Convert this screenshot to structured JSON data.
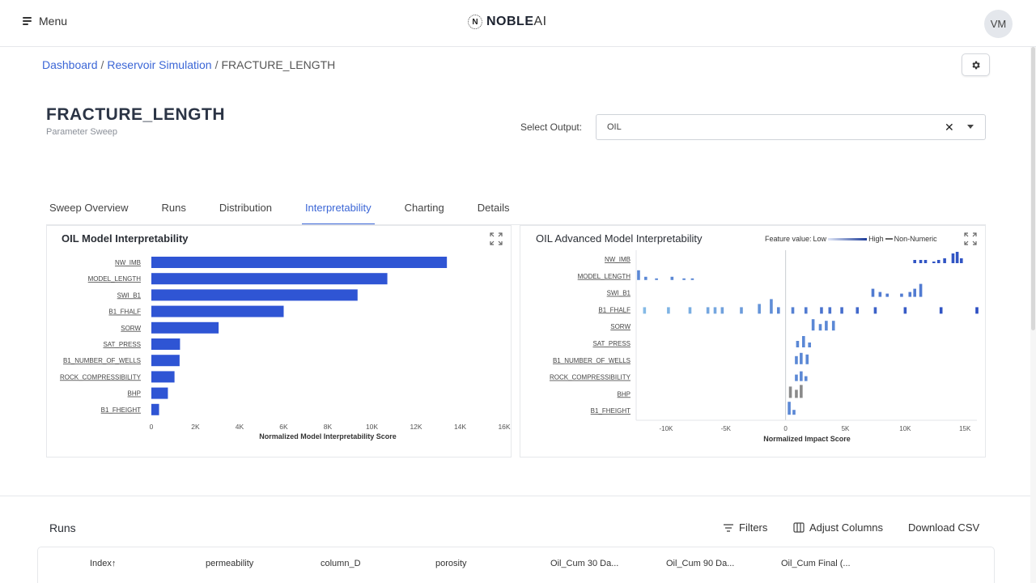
{
  "header": {
    "menu_label": "Menu",
    "logo_mark": "N",
    "logo_main": "NOBLE",
    "logo_ai": "AI",
    "avatar_initials": "VM"
  },
  "breadcrumb": {
    "items": [
      "Dashboard",
      "Reservoir Simulation"
    ],
    "separator": "/",
    "current": "FRACTURE_LENGTH"
  },
  "page": {
    "title": "FRACTURE_LENGTH",
    "subtitle": "Parameter Sweep"
  },
  "output_select": {
    "label": "Select Output:",
    "value": "OIL",
    "clear": "✕"
  },
  "tabs": [
    {
      "label": "Sweep Overview",
      "active": false
    },
    {
      "label": "Runs",
      "active": false
    },
    {
      "label": "Distribution",
      "active": false
    },
    {
      "label": "Interpretability",
      "active": true
    },
    {
      "label": "Charting",
      "active": false
    },
    {
      "label": "Details",
      "active": false
    }
  ],
  "colors": {
    "accent": "#3b66d6",
    "bar": "#2f55d4",
    "beeswarm_low": "#8fc7ea",
    "beeswarm_high": "#2748c0",
    "non_numeric": "#8a8a8a"
  },
  "chart_data": [
    {
      "type": "bar",
      "orientation": "horizontal",
      "title": "OIL Model Interpretability",
      "xlabel": "Normalized Model Interpretability Score",
      "categories": [
        "NW_IMB",
        "MODEL_LENGTH",
        "SWI_B1",
        "B1_FHALF",
        "SORW",
        "SAT_PRESS",
        "B1_NUMBER_OF_WELLS",
        "ROCK_COMPRESSIBILITY",
        "BHP",
        "B1_FHEIGHT"
      ],
      "values": [
        13400,
        10700,
        9350,
        6000,
        3050,
        1300,
        1280,
        1050,
        750,
        350
      ],
      "xlim": [
        0,
        16000
      ],
      "xticks": [
        0,
        2000,
        4000,
        6000,
        8000,
        10000,
        12000,
        14000,
        16000
      ],
      "xtick_labels": [
        "0",
        "2K",
        "4K",
        "6K",
        "8K",
        "10K",
        "12K",
        "14K",
        "16K"
      ]
    },
    {
      "type": "scatter",
      "title": "OIL Advanced Model Interpretability",
      "xlabel": "Normalized Impact Score",
      "legend": {
        "label": "Feature value:",
        "low": "Low",
        "high": "High",
        "non_numeric": "Non-Numeric",
        "placement": "top-right"
      },
      "categories": [
        "NW_IMB",
        "MODEL_LENGTH",
        "SWI_B1",
        "B1_FHALF",
        "SORW",
        "SAT_PRESS",
        "B1_NUMBER_OF_WELLS",
        "ROCK_COMPRESSIBILITY",
        "BHP",
        "B1_FHEIGHT"
      ],
      "xlim": [
        -12500,
        16000
      ],
      "xticks": [
        -10000,
        -5000,
        0,
        5000,
        10000,
        15000
      ],
      "xtick_labels": [
        "-10K",
        "-5K",
        "0",
        "5K",
        "10K",
        "15K"
      ],
      "series": [
        {
          "points": [
            [
              10800,
              2,
              0.9
            ],
            [
              11300,
              2,
              0.9
            ],
            [
              11700,
              2,
              0.9
            ],
            [
              12400,
              1,
              0.9
            ],
            [
              12800,
              2,
              0.9
            ],
            [
              13300,
              3,
              0.9
            ],
            [
              14000,
              6,
              0.9
            ],
            [
              14350,
              7,
              0.9
            ],
            [
              14700,
              3,
              0.9
            ]
          ]
        },
        {
          "points": [
            [
              -12300,
              6,
              0.5
            ],
            [
              -11700,
              2,
              0.5
            ],
            [
              -10800,
              1,
              0.5
            ],
            [
              -9500,
              2,
              0.5
            ],
            [
              -8500,
              1,
              0.5
            ],
            [
              -7800,
              1,
              0.5
            ]
          ]
        },
        {
          "points": [
            [
              7300,
              5,
              0.6
            ],
            [
              7900,
              3,
              0.6
            ],
            [
              8500,
              2,
              0.6
            ],
            [
              9700,
              2,
              0.6
            ],
            [
              10400,
              3,
              0.6
            ],
            [
              10800,
              5,
              0.6
            ],
            [
              11300,
              8,
              0.6
            ]
          ]
        },
        {
          "points": [
            [
              -11800,
              4,
              0.1
            ],
            [
              -9800,
              4,
              0.15
            ],
            [
              -8000,
              4,
              0.2
            ],
            [
              -6500,
              4,
              0.25
            ],
            [
              -5900,
              4,
              0.25
            ],
            [
              -5300,
              4,
              0.3
            ],
            [
              -3700,
              4,
              0.35
            ],
            [
              -2200,
              6,
              0.4
            ],
            [
              -1200,
              9,
              0.45
            ],
            [
              -600,
              4,
              0.5
            ],
            [
              600,
              4,
              0.55
            ],
            [
              1700,
              4,
              0.6
            ],
            [
              3000,
              4,
              0.65
            ],
            [
              3700,
              4,
              0.65
            ],
            [
              4700,
              4,
              0.7
            ],
            [
              6000,
              4,
              0.75
            ],
            [
              7500,
              4,
              0.8
            ],
            [
              10000,
              4,
              0.85
            ],
            [
              13000,
              4,
              0.9
            ],
            [
              16000,
              4,
              0.95
            ]
          ]
        },
        {
          "points": [
            [
              2300,
              7,
              0.5
            ],
            [
              2900,
              4,
              0.5
            ],
            [
              3400,
              6,
              0.5
            ],
            [
              4000,
              6,
              0.5
            ]
          ]
        },
        {
          "points": [
            [
              1000,
              4,
              0.5
            ],
            [
              1500,
              7,
              0.5
            ],
            [
              2000,
              3,
              0.5
            ]
          ]
        },
        {
          "points": [
            [
              900,
              5,
              0.5
            ],
            [
              1300,
              7,
              0.5
            ],
            [
              1800,
              6,
              0.5
            ]
          ]
        },
        {
          "points": [
            [
              900,
              4,
              0.5
            ],
            [
              1300,
              6,
              0.5
            ],
            [
              1700,
              3,
              0.5
            ]
          ]
        },
        {
          "points": [
            [
              400,
              7,
              -1
            ],
            [
              900,
              5,
              -1
            ],
            [
              1300,
              8,
              -1
            ]
          ]
        },
        {
          "points": [
            [
              300,
              8,
              0.5
            ],
            [
              700,
              3,
              0.5
            ]
          ]
        }
      ]
    }
  ],
  "runs": {
    "title": "Runs",
    "actions": {
      "filters": "Filters",
      "adjust_columns": "Adjust Columns",
      "download_csv": "Download CSV"
    },
    "columns": [
      "Index",
      "permeability",
      "column_D",
      "porosity",
      "Oil_Cum 30 Da...",
      "Oil_Cum 90 Da...",
      "Oil_Cum Final (..."
    ]
  }
}
